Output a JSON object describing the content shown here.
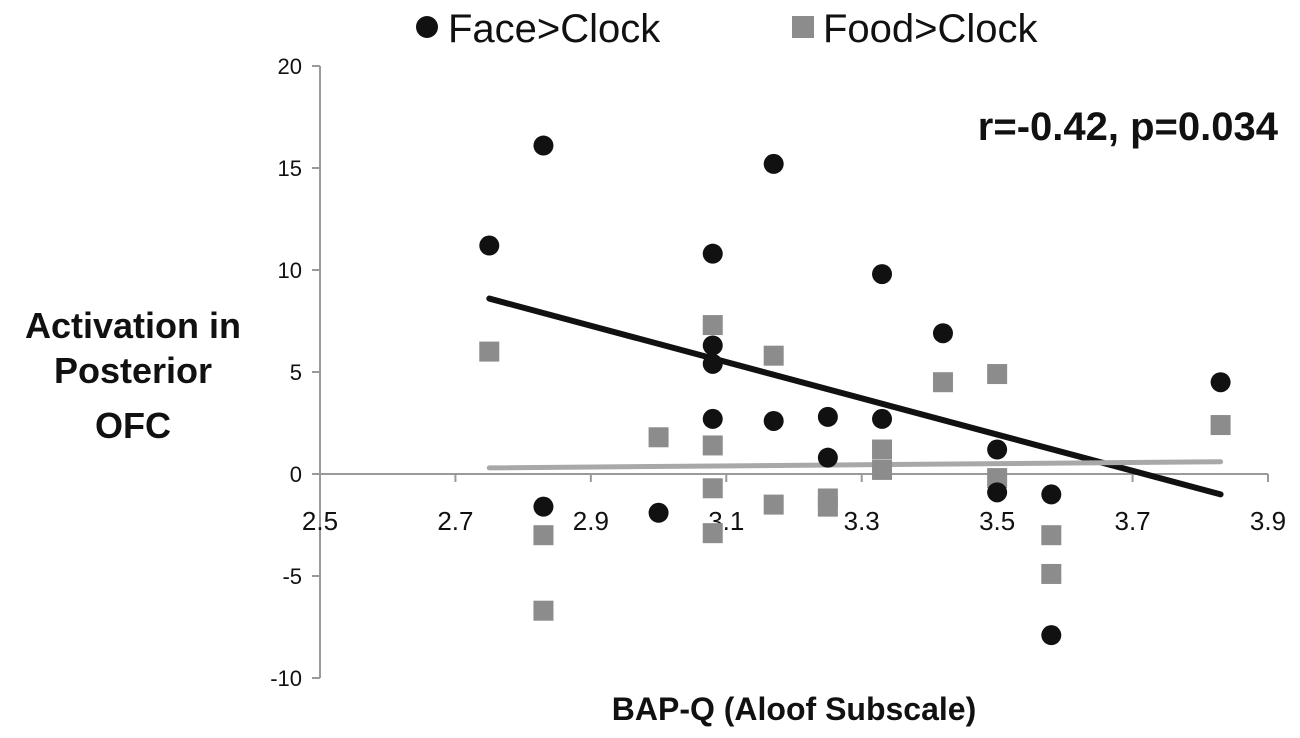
{
  "chart_data": {
    "type": "scatter",
    "title": "",
    "xlabel": "BAP-Q (Aloof Subscale)",
    "ylabel_lines": [
      "Activation in",
      "Posterior",
      "OFC"
    ],
    "xlim": [
      2.5,
      3.9
    ],
    "ylim": [
      -10,
      20
    ],
    "x_ticks": [
      2.5,
      2.7,
      2.9,
      3.1,
      3.3,
      3.5,
      3.7,
      3.9
    ],
    "x_tick_labels": [
      "2.5",
      "2.7",
      "2.9",
      "3.1",
      "3.3",
      "3.5",
      "3.7",
      "3.9"
    ],
    "y_ticks": [
      20,
      15,
      10,
      5,
      0,
      -5,
      -10
    ],
    "y_tick_labels": [
      "20",
      "15",
      "10",
      "5",
      "0",
      "-5",
      "-10"
    ],
    "annotation": "r=-0.42, p=0.034",
    "legend_position": "top",
    "series": [
      {
        "name": "Face>Clock",
        "marker": "circle",
        "color": "#111111",
        "points": [
          {
            "x": 2.75,
            "y": 11.2
          },
          {
            "x": 2.83,
            "y": 16.1
          },
          {
            "x": 2.83,
            "y": -1.6
          },
          {
            "x": 3.0,
            "y": -1.9
          },
          {
            "x": 3.08,
            "y": 10.8
          },
          {
            "x": 3.08,
            "y": 6.3
          },
          {
            "x": 3.08,
            "y": 5.4
          },
          {
            "x": 3.08,
            "y": 2.7
          },
          {
            "x": 3.17,
            "y": 15.2
          },
          {
            "x": 3.17,
            "y": 2.6
          },
          {
            "x": 3.25,
            "y": 2.8
          },
          {
            "x": 3.25,
            "y": 0.8
          },
          {
            "x": 3.33,
            "y": 9.8
          },
          {
            "x": 3.33,
            "y": 2.7
          },
          {
            "x": 3.42,
            "y": 6.9
          },
          {
            "x": 3.5,
            "y": 1.2
          },
          {
            "x": 3.5,
            "y": -0.9
          },
          {
            "x": 3.58,
            "y": -1.0
          },
          {
            "x": 3.58,
            "y": -7.9
          },
          {
            "x": 3.83,
            "y": 4.5
          }
        ],
        "trendline": {
          "x": [
            2.75,
            3.83
          ],
          "y": [
            8.6,
            -1.0
          ]
        }
      },
      {
        "name": "Food>Clock",
        "marker": "square",
        "color": "#8c8c8c",
        "points": [
          {
            "x": 2.75,
            "y": 6.0
          },
          {
            "x": 2.83,
            "y": -3.0
          },
          {
            "x": 2.83,
            "y": -6.7
          },
          {
            "x": 3.0,
            "y": 1.8
          },
          {
            "x": 3.08,
            "y": 7.3
          },
          {
            "x": 3.08,
            "y": 1.4
          },
          {
            "x": 3.08,
            "y": -0.7
          },
          {
            "x": 3.08,
            "y": -2.9
          },
          {
            "x": 3.17,
            "y": 5.8
          },
          {
            "x": 3.17,
            "y": -1.5
          },
          {
            "x": 3.25,
            "y": -1.2
          },
          {
            "x": 3.25,
            "y": -1.6
          },
          {
            "x": 3.33,
            "y": 1.2
          },
          {
            "x": 3.33,
            "y": 0.2
          },
          {
            "x": 3.42,
            "y": 4.5
          },
          {
            "x": 3.5,
            "y": 4.9
          },
          {
            "x": 3.5,
            "y": -0.2
          },
          {
            "x": 3.58,
            "y": -3.0
          },
          {
            "x": 3.58,
            "y": -4.9
          },
          {
            "x": 3.83,
            "y": 2.4
          }
        ],
        "trendline": {
          "x": [
            2.75,
            3.83
          ],
          "y": [
            0.3,
            0.6
          ]
        }
      }
    ]
  }
}
